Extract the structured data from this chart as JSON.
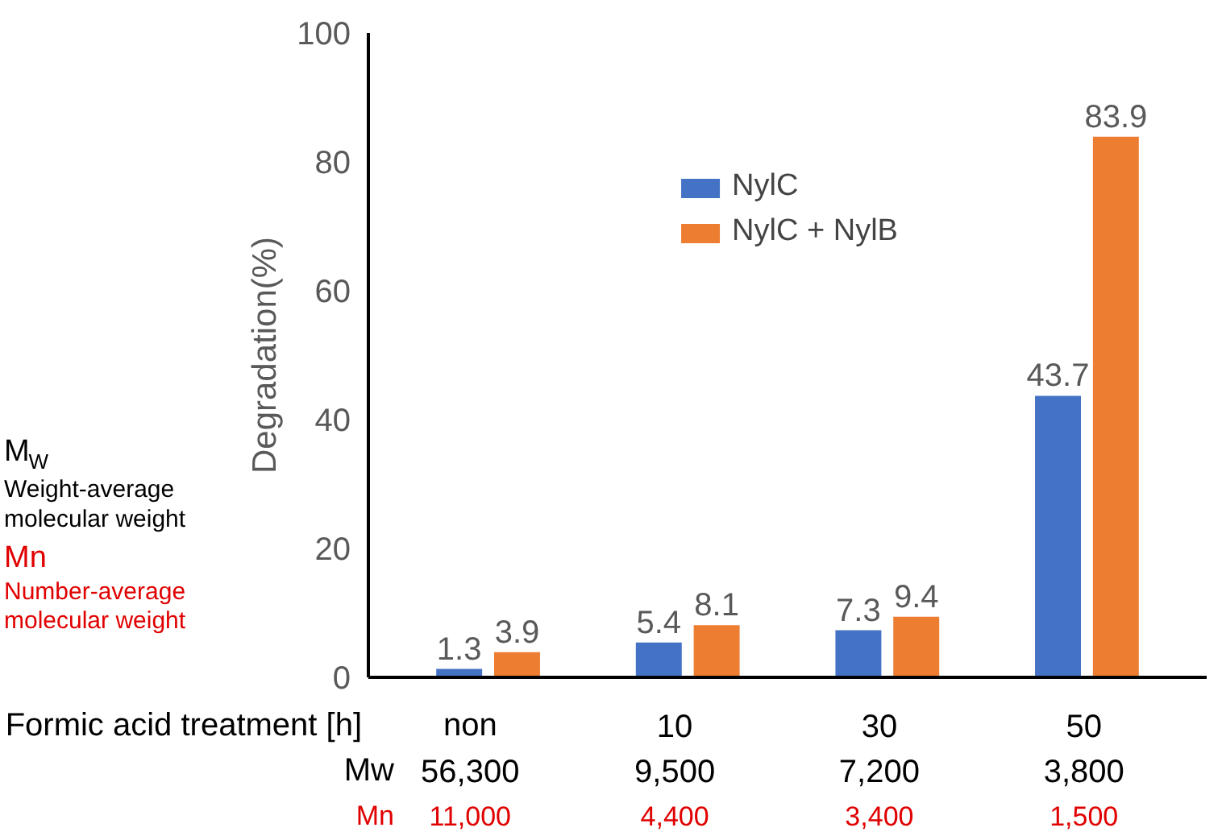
{
  "chart_data": {
    "type": "bar",
    "ylabel": "Degradation(%)",
    "xlabel": "Formic acid treatment [h]",
    "categories": [
      "non",
      "10",
      "30",
      "50"
    ],
    "series": [
      {
        "name": "NylC",
        "color": "#4472c4",
        "values": [
          1.3,
          5.4,
          7.3,
          43.7
        ]
      },
      {
        "name": "NylC + NylB",
        "color": "#ed7d31",
        "values": [
          3.9,
          8.1,
          9.4,
          83.9
        ]
      }
    ],
    "ylim": [
      0,
      100
    ],
    "yticks": [
      0,
      20,
      40,
      60,
      80,
      100
    ],
    "grid": false,
    "legend": "top",
    "data_labels": true,
    "annotations": [
      "M$_{W}$",
      "Weight-average molecular weight",
      "Mn",
      "Number-average molecular weight",
      "Mw",
      "56,300",
      "9,500",
      "7,200",
      "3,800",
      "Mn",
      "11,000",
      "4,400",
      "3,400",
      "1,500"
    ]
  }
}
